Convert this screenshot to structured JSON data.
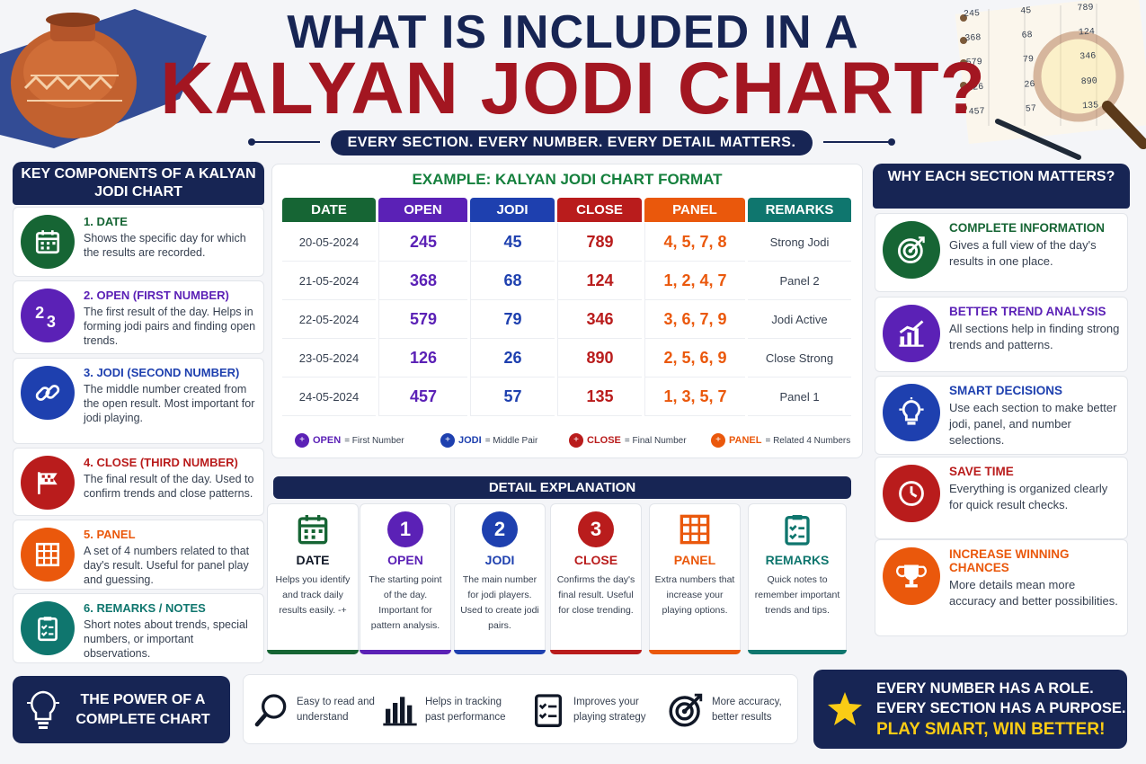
{
  "header": {
    "title_line1": "WHAT IS INCLUDED IN A",
    "title_line2": "KALYAN JODI CHART?",
    "tagline": "EVERY SECTION. EVERY NUMBER. EVERY DETAIL MATTERS."
  },
  "deco_numbers": [
    "245",
    "45",
    "789",
    "368",
    "68",
    "124",
    "579",
    "79",
    "346",
    "126",
    "26",
    "890",
    "457",
    "57",
    "135"
  ],
  "left_panel": {
    "heading": "KEY COMPONENTS OF A KALYAN JODI CHART",
    "items": [
      {
        "title": "1. DATE",
        "text": "Shows the specific day for which the results are recorded.",
        "color": "#166534",
        "icon": "calendar-icon"
      },
      {
        "title": "2. OPEN (FIRST NUMBER)",
        "text": "The first result of the day. Helps in forming jodi pairs and finding open trends.",
        "color": "#5b21b6",
        "icon": "numbers-icon"
      },
      {
        "title": "3. JODI (SECOND NUMBER)",
        "text": "The middle number created from the open result. Most important for jodi playing.",
        "color": "#1e40af",
        "icon": "link-icon"
      },
      {
        "title": "4. CLOSE (THIRD NUMBER)",
        "text": "The final result of the day. Used to confirm trends and close patterns.",
        "color": "#b91c1c",
        "icon": "flag-icon"
      },
      {
        "title": "5. PANEL",
        "text": "A set of 4 numbers related to that day's result. Useful for panel play and guessing.",
        "color": "#ea580c",
        "icon": "grid-icon"
      },
      {
        "title": "6. REMARKS / NOTES",
        "text": "Short notes about trends, special numbers, or important observations.",
        "color": "#0f766e",
        "icon": "clipboard-icon"
      }
    ]
  },
  "example": {
    "title": "EXAMPLE: KALYAN JODI CHART FORMAT",
    "columns": [
      {
        "label": "DATE",
        "color": "#166534"
      },
      {
        "label": "OPEN",
        "color": "#5b21b6"
      },
      {
        "label": "JODI",
        "color": "#1e40af"
      },
      {
        "label": "CLOSE",
        "color": "#b91c1c"
      },
      {
        "label": "PANEL",
        "color": "#ea580c"
      },
      {
        "label": "REMARKS",
        "color": "#0f766e"
      }
    ],
    "rows": [
      {
        "date": "20-05-2024",
        "open": "245",
        "jodi": "45",
        "close": "789",
        "panel": "4, 5, 7, 8",
        "remarks": "Strong Jodi"
      },
      {
        "date": "21-05-2024",
        "open": "368",
        "jodi": "68",
        "close": "124",
        "panel": "1, 2, 4, 7",
        "remarks": "Panel 2"
      },
      {
        "date": "22-05-2024",
        "open": "579",
        "jodi": "79",
        "close": "346",
        "panel": "3, 6, 7, 9",
        "remarks": "Jodi Active"
      },
      {
        "date": "23-05-2024",
        "open": "126",
        "jodi": "26",
        "close": "890",
        "panel": "2, 5, 6, 9",
        "remarks": "Close Strong"
      },
      {
        "date": "24-05-2024",
        "open": "457",
        "jodi": "57",
        "close": "135",
        "panel": "1, 3, 5, 7",
        "remarks": "Panel 1"
      }
    ],
    "legend": [
      {
        "key": "OPEN",
        "desc": "= First Number",
        "color": "#5b21b6"
      },
      {
        "key": "JODI",
        "desc": "= Middle Pair",
        "color": "#1e40af"
      },
      {
        "key": "CLOSE",
        "desc": "= Final Number",
        "color": "#b91c1c"
      },
      {
        "key": "PANEL",
        "desc": "= Related 4 Numbers",
        "color": "#ea580c"
      }
    ]
  },
  "detail": {
    "heading": "DETAIL EXPLANATION",
    "items": [
      {
        "badge": "",
        "title": "DATE",
        "text": "Helps you identify and track daily results easily. -+",
        "color": "#166534",
        "icon": "calendar-icon"
      },
      {
        "badge": "1",
        "title": "OPEN",
        "text": "The starting point of the day. Important for pattern analysis.",
        "color": "#5b21b6",
        "icon": "number-one-icon"
      },
      {
        "badge": "2",
        "title": "JODI",
        "text": "The main number for jodi players. Used to create jodi pairs.",
        "color": "#1e40af",
        "icon": "number-two-icon"
      },
      {
        "badge": "3",
        "title": "CLOSE",
        "text": "Confirms the day's final result. Useful for close trending.",
        "color": "#b91c1c",
        "icon": "number-three-icon"
      },
      {
        "badge": "",
        "title": "PANEL",
        "text": "Extra numbers that increase your playing options.",
        "color": "#ea580c",
        "icon": "grid-icon"
      },
      {
        "badge": "",
        "title": "REMARKS",
        "text": "Quick notes to remember important trends and tips.",
        "color": "#0f766e",
        "icon": "clipboard-icon"
      }
    ]
  },
  "right_panel": {
    "heading": "WHY EACH SECTION MATTERS?",
    "items": [
      {
        "title": "COMPLETE INFORMATION",
        "text": "Gives a full view of the day's results in one place.",
        "color": "#166534",
        "icon": "target-icon"
      },
      {
        "title": "BETTER TREND ANALYSIS",
        "text": "All sections help in finding strong trends and patterns.",
        "color": "#5b21b6",
        "icon": "chart-icon"
      },
      {
        "title": "SMART DECISIONS",
        "text": "Use each section to make better jodi, panel, and number selections.",
        "color": "#1e40af",
        "icon": "bulb-icon"
      },
      {
        "title": "SAVE TIME",
        "text": "Everything is organized clearly for quick result checks.",
        "color": "#b91c1c",
        "icon": "clock-icon"
      },
      {
        "title": "INCREASE WINNING CHANCES",
        "text": "More details mean more accuracy and better possibilities.",
        "color": "#ea580c",
        "icon": "trophy-icon"
      }
    ]
  },
  "bottom": {
    "power_title": "THE POWER OF A COMPLETE CHART",
    "features": [
      {
        "text": "Easy to read and understand",
        "icon": "magnifier-icon"
      },
      {
        "text": "Helps in tracking past performance",
        "icon": "bar-chart-icon"
      },
      {
        "text": "Improves your playing strategy",
        "icon": "checklist-icon"
      },
      {
        "text": "More accuracy, better results",
        "icon": "target-icon"
      }
    ],
    "cta_line1": "EVERY NUMBER HAS A ROLE.",
    "cta_line2": "EVERY SECTION HAS A PURPOSE.",
    "cta_line3": "PLAY SMART, WIN BETTER!"
  }
}
